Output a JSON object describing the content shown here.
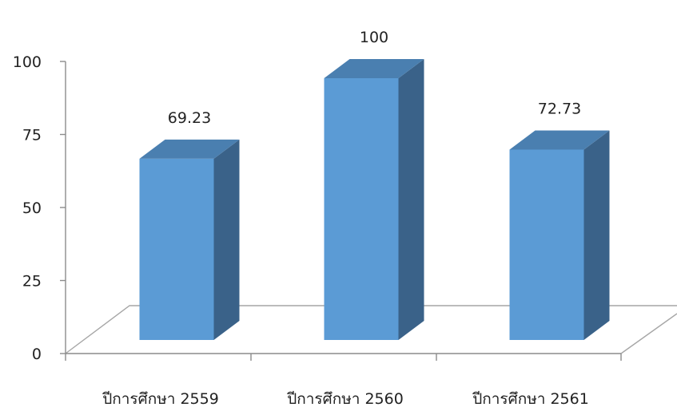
{
  "chart_data": {
    "type": "bar",
    "categories": [
      "ปีการศึกษา 2559",
      "ปีการศึกษา 2560",
      "ปีการศึกษา 2561"
    ],
    "values": [
      69.23,
      100,
      72.73
    ],
    "data_labels": [
      "69.23",
      "100",
      "72.73"
    ],
    "y_ticks": [
      "0",
      "25",
      "50",
      "75",
      "100"
    ],
    "ylim": [
      0,
      100
    ],
    "title": "",
    "xlabel": "",
    "ylabel": "",
    "grid": false,
    "legend": "none",
    "style": "3d-column",
    "colors": {
      "bar_front": "#5b9bd5",
      "bar_top": "#4a7fb0",
      "bar_side": "#3a6289",
      "axis": "#8c8c8c"
    }
  }
}
